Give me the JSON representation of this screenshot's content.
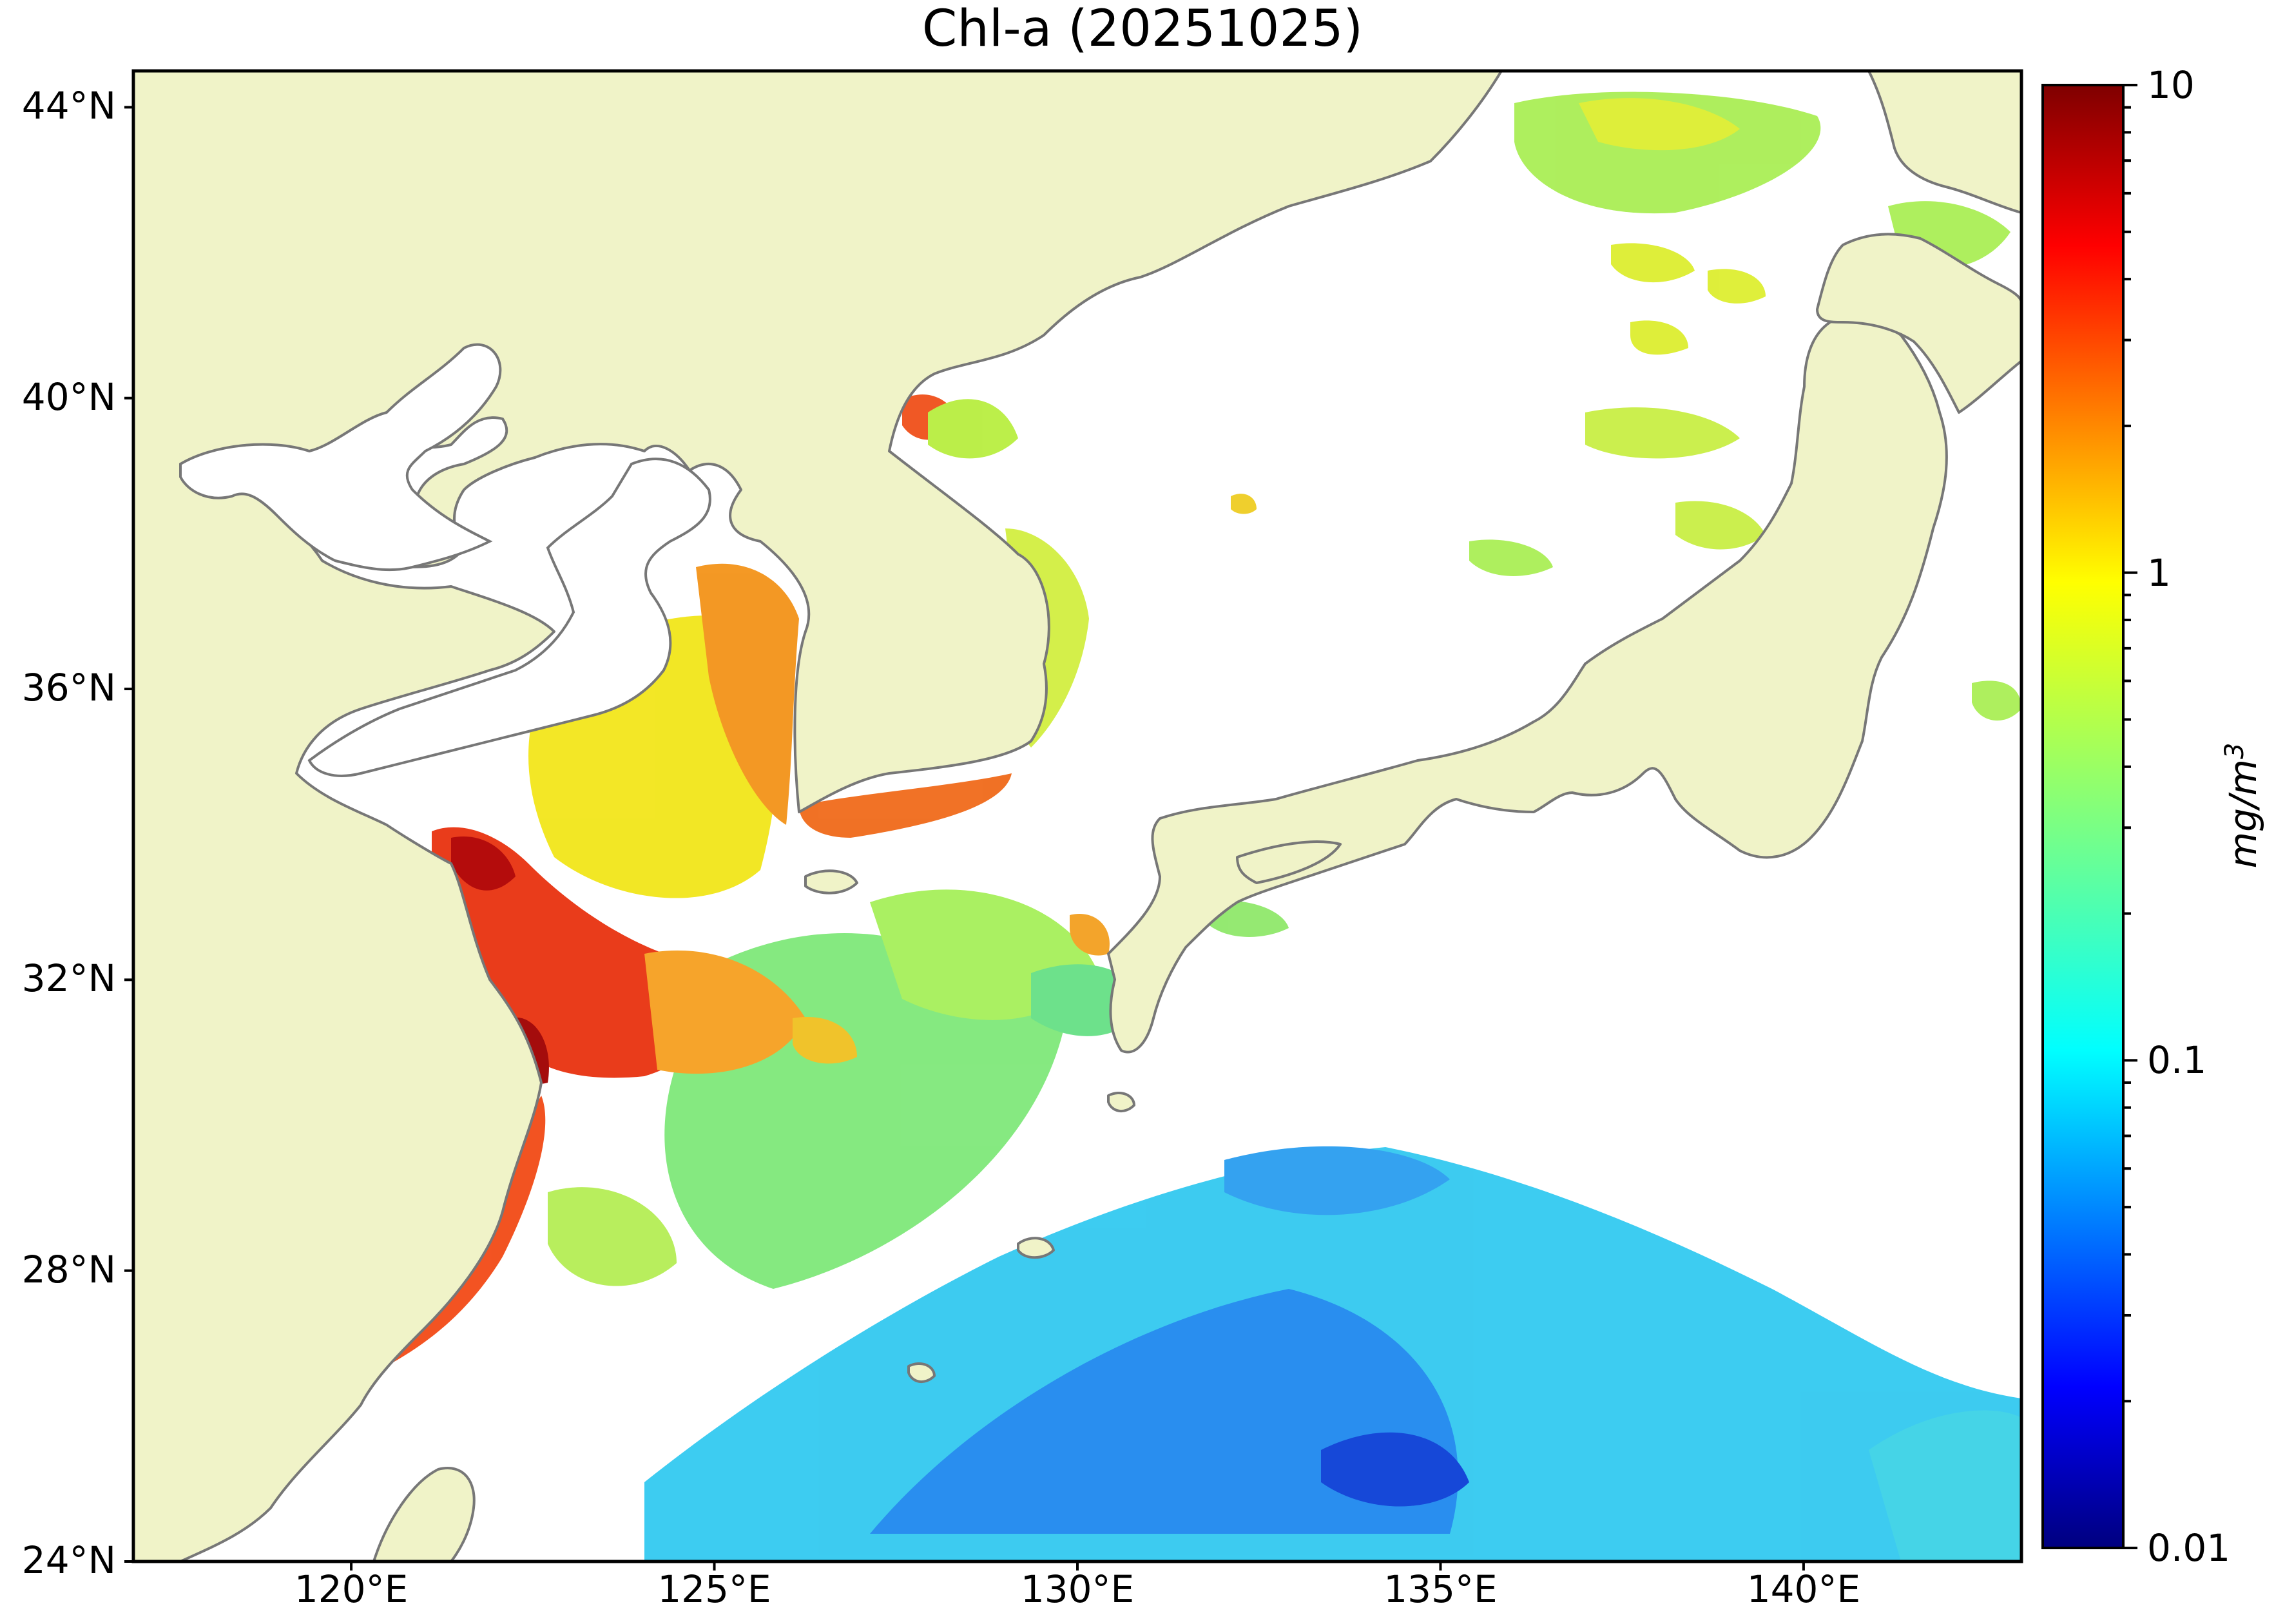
{
  "title": "Chl-a (20251025)",
  "lat_ticks": [
    {
      "label": "44°N",
      "lat": 44
    },
    {
      "label": "40°N",
      "lat": 40
    },
    {
      "label": "36°N",
      "lat": 36
    },
    {
      "label": "32°N",
      "lat": 32
    },
    {
      "label": "28°N",
      "lat": 28
    },
    {
      "label": "24°N",
      "lat": 24
    }
  ],
  "lon_ticks": [
    {
      "label": "120°E",
      "lon": 120
    },
    {
      "label": "125°E",
      "lon": 125
    },
    {
      "label": "130°E",
      "lon": 130
    },
    {
      "label": "135°E",
      "lon": 135
    },
    {
      "label": "140°E",
      "lon": 140
    }
  ],
  "extent": {
    "lon_min": 117,
    "lon_max": 143,
    "lat_min": 24,
    "lat_max": 44.5
  },
  "colorbar": {
    "scale": "log",
    "min": 0.01,
    "max": 10,
    "tick_labels": [
      "10",
      "1",
      "0.1",
      "0.01"
    ],
    "unit_base": "mg/m",
    "unit_exp": "3",
    "colormap": "jet"
  },
  "colors": {
    "land": "#f0f3c8",
    "coast": "#777777",
    "ocean_nodata": "#ffffff"
  }
}
